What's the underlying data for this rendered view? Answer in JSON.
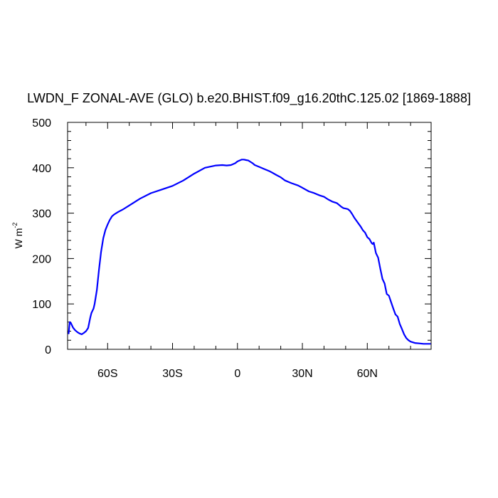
{
  "chart_data": {
    "type": "line",
    "title": "LWDN_F ZONAL-AVE (GLO) b.e20.BHIST.f09_g16.20thC.125.02 [1869-1888]",
    "ylabel": "W m",
    "ylabel_superscript": "-2",
    "xlabel": "",
    "xlim": [
      -78.5,
      89.5
    ],
    "ylim": [
      0,
      500
    ],
    "grid": false,
    "x_ticks": [
      {
        "value": -60,
        "label": "60S"
      },
      {
        "value": -30,
        "label": "30S"
      },
      {
        "value": 0,
        "label": "0"
      },
      {
        "value": 30,
        "label": "30N"
      },
      {
        "value": 60,
        "label": "60N"
      }
    ],
    "y_ticks": [
      {
        "value": 0,
        "label": "0"
      },
      {
        "value": 100,
        "label": "100"
      },
      {
        "value": 200,
        "label": "200"
      },
      {
        "value": 300,
        "label": "300"
      },
      {
        "value": 400,
        "label": "400"
      },
      {
        "value": 500,
        "label": "500"
      }
    ],
    "series": [
      {
        "color": "#0000ff",
        "x": [
          -78,
          -77.5,
          -77,
          -76,
          -75,
          -74,
          -73,
          -72,
          -71,
          -70,
          -69,
          -68,
          -67.5,
          -67,
          -66.5,
          -66,
          -65,
          -64,
          -63,
          -62,
          -61,
          -60,
          -59,
          -58,
          -57,
          -56,
          -55,
          -53,
          -50,
          -45,
          -40,
          -35,
          -30,
          -25,
          -20,
          -15,
          -10,
          -7,
          -5,
          -3,
          -1,
          0,
          2,
          3,
          4,
          5,
          6,
          7,
          8,
          10,
          12,
          15,
          18,
          20,
          22,
          25,
          28,
          30,
          33,
          35,
          38,
          40,
          42,
          44,
          46,
          48,
          49,
          50,
          51,
          52,
          53,
          54,
          55,
          57,
          58,
          59,
          60,
          61,
          62,
          62.5,
          63,
          64,
          65,
          66,
          67,
          68,
          69,
          70,
          71,
          72,
          73,
          74,
          75,
          76,
          77,
          78,
          79,
          80,
          82,
          84,
          86,
          88,
          89
        ],
        "y": [
          35,
          60,
          58,
          48,
          42,
          38,
          35,
          33,
          36,
          40,
          47,
          70,
          80,
          85,
          90,
          100,
          130,
          175,
          215,
          245,
          263,
          275,
          285,
          293,
          297,
          300,
          303,
          308,
          317,
          332,
          344,
          352,
          360,
          372,
          387,
          400,
          405,
          406,
          405,
          406,
          410,
          414,
          418,
          418,
          417,
          416,
          413,
          410,
          406,
          402,
          398,
          392,
          384,
          379,
          372,
          366,
          361,
          356,
          348,
          345,
          339,
          336,
          330,
          325,
          322,
          314,
          311,
          310,
          309,
          305,
          298,
          290,
          283,
          270,
          262,
          257,
          247,
          243,
          234,
          232,
          235,
          212,
          202,
          178,
          155,
          145,
          122,
          118,
          104,
          90,
          77,
          72,
          56,
          45,
          33,
          25,
          20,
          17,
          14,
          13,
          12,
          12,
          12
        ]
      }
    ]
  }
}
